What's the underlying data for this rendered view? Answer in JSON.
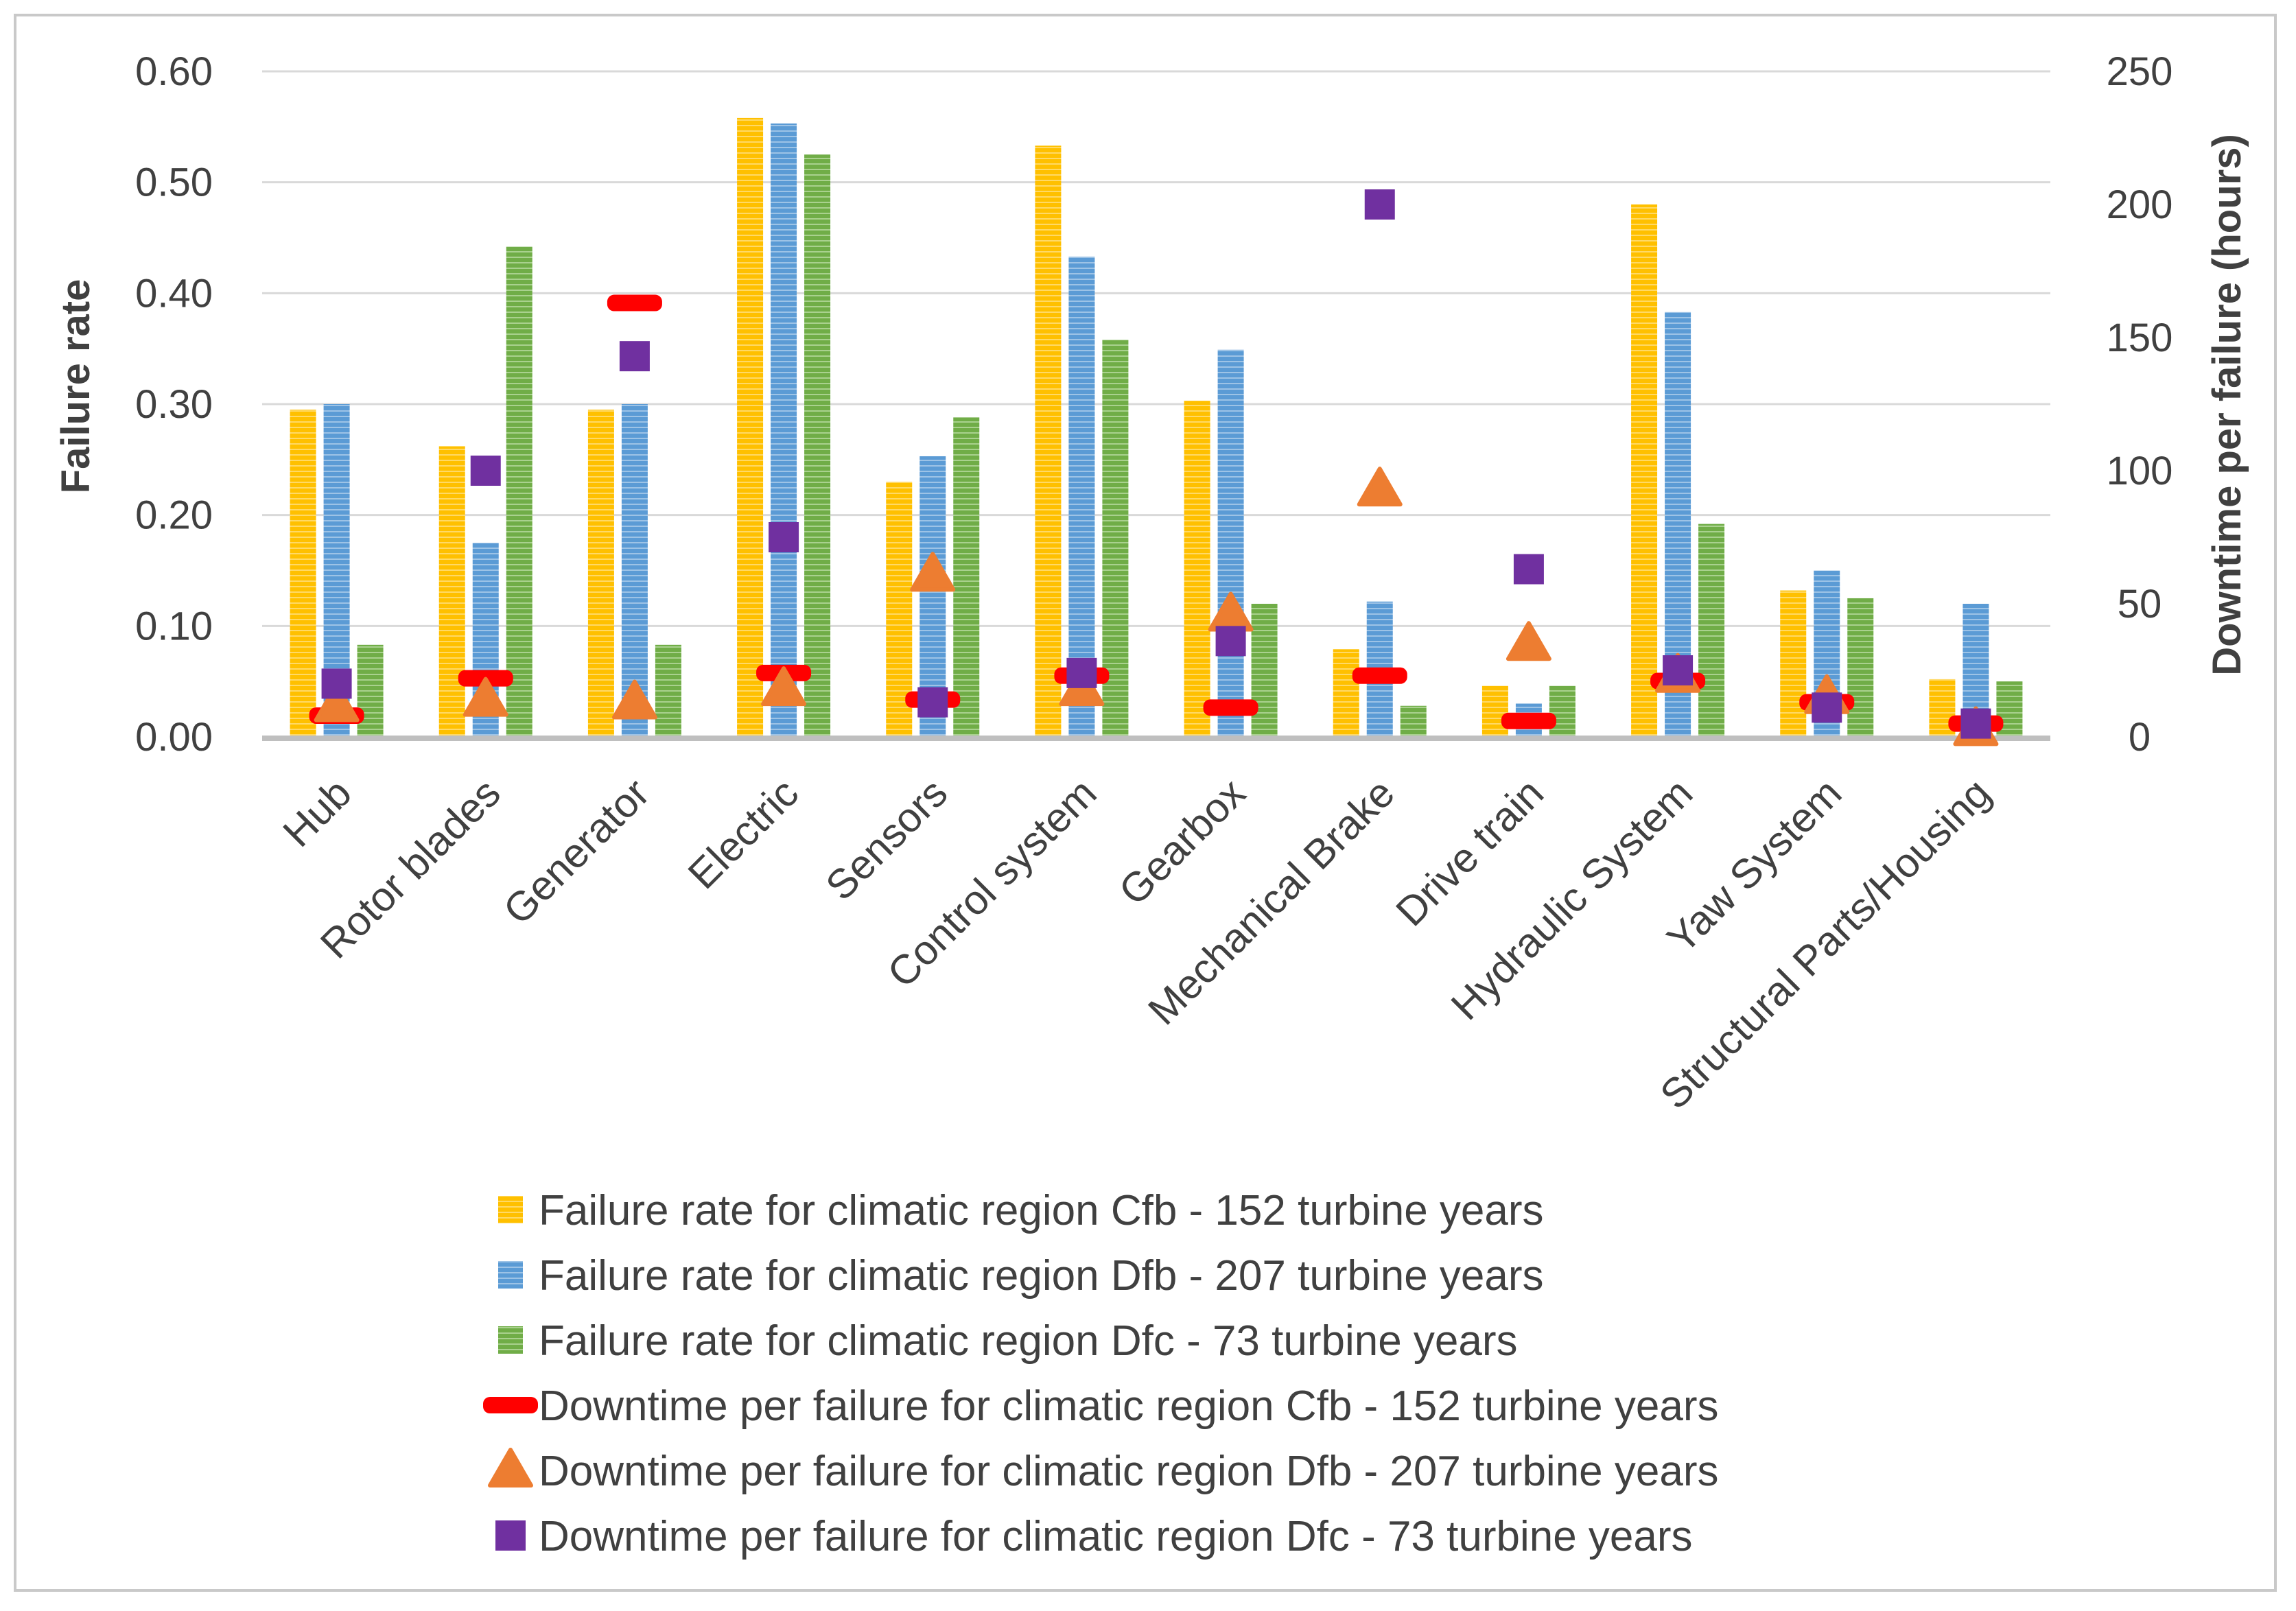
{
  "chart_data": {
    "type": "bar",
    "title": "",
    "xlabel": "",
    "ylabel": "Failure rate",
    "y2label": "Downtime per failure (hours)",
    "ylim": [
      0,
      0.6
    ],
    "y2lim": [
      0,
      250
    ],
    "y_ticks": [
      "0.00",
      "0.10",
      "0.20",
      "0.30",
      "0.40",
      "0.50",
      "0.60"
    ],
    "y2_ticks": [
      "0",
      "50",
      "100",
      "150",
      "200",
      "250"
    ],
    "categories": [
      "Hub",
      "Rotor blades",
      "Generator",
      "Electric",
      "Sensors",
      "Control system",
      "Gearbox",
      "Mechanical Brake",
      "Drive train",
      "Hydraulic System",
      "Yaw System",
      "Structural Parts/Housing"
    ],
    "series": [
      {
        "name": "Failure rate for climatic region Cfb - 152 turbine years",
        "kind": "bar",
        "axis": "left",
        "color": "#FFC000",
        "values": [
          0.295,
          0.262,
          0.295,
          0.558,
          0.23,
          0.533,
          0.303,
          0.079,
          0.046,
          0.48,
          0.132,
          0.052
        ]
      },
      {
        "name": "Failure rate for climatic region Dfb - 207 turbine years",
        "kind": "bar",
        "axis": "left",
        "color": "#5B9BD5",
        "values": [
          0.3,
          0.175,
          0.3,
          0.553,
          0.253,
          0.433,
          0.349,
          0.122,
          0.03,
          0.383,
          0.15,
          0.12
        ]
      },
      {
        "name": "Failure rate for climatic region Dfc - 73 turbine years",
        "kind": "bar",
        "axis": "left",
        "color": "#70AD47",
        "values": [
          0.083,
          0.442,
          0.083,
          0.525,
          0.288,
          0.358,
          0.12,
          0.028,
          0.046,
          0.192,
          0.125,
          0.05
        ]
      },
      {
        "name": "Downtime per failure for climatic region Cfb - 152 turbine years",
        "kind": "dash",
        "axis": "right",
        "color": "#FF0000",
        "values": [
          8,
          22,
          163,
          24,
          14,
          23,
          11,
          23,
          6,
          21,
          13,
          5
        ]
      },
      {
        "name": "Downtime per failure for climatic region Dfb - 207 turbine years",
        "kind": "triangle",
        "axis": "right",
        "color": "#ED7D31",
        "values": [
          12,
          14,
          13,
          18,
          61,
          18,
          46,
          93,
          35,
          23,
          15,
          3
        ]
      },
      {
        "name": "Downtime per failure for climatic region Dfc - 73 turbine years",
        "kind": "square",
        "axis": "right",
        "color": "#7030A0",
        "values": [
          20,
          100,
          143,
          75,
          13,
          24,
          36,
          200,
          63,
          25,
          11,
          5
        ]
      }
    ],
    "grid": true,
    "legend_position": "bottom"
  }
}
